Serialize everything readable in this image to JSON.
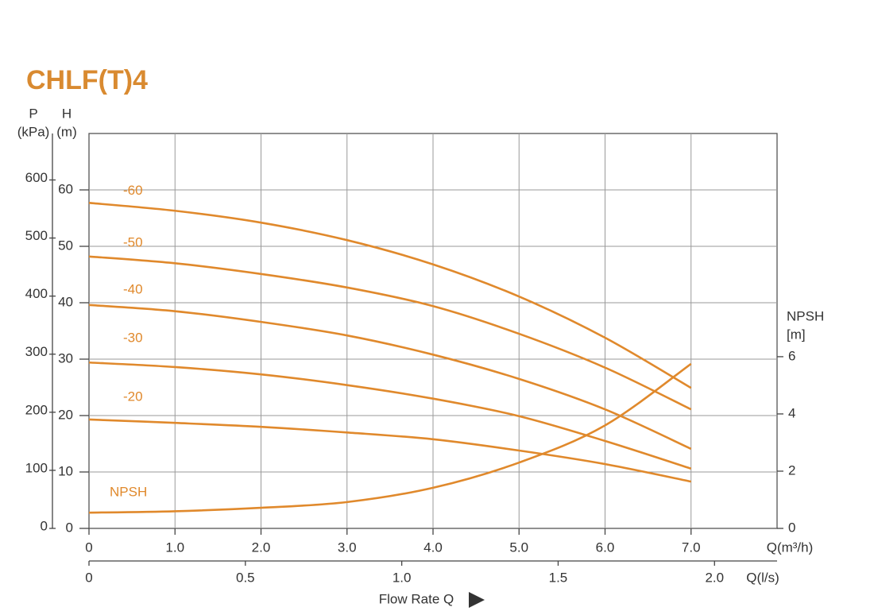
{
  "chart_data": {
    "type": "line",
    "title": "CHLF(T)4",
    "p_label": "P",
    "p_unit": "(kPa)",
    "y_label": "H",
    "y_unit": "(m)",
    "y2_label": "NPSH",
    "y2_unit": "[m]",
    "x_unit": "Q(m³/h)",
    "x2_unit": "Q(l/s)",
    "x_label": "Flow Rate Q",
    "grid": true,
    "xlim": [
      0,
      8
    ],
    "xticks": [
      0,
      {
        "value": 1,
        "label": "1.0"
      },
      {
        "value": 2,
        "label": "2.0"
      },
      {
        "value": 3,
        "label": "3.0"
      },
      {
        "value": 4,
        "label": "4.0"
      },
      {
        "value": 5,
        "label": "5.0"
      },
      {
        "value": 6,
        "label": "6.0"
      },
      {
        "value": 7,
        "label": "7.0"
      }
    ],
    "x2lim": [
      0,
      2.2
    ],
    "x2ticks": [
      0,
      0.5,
      {
        "value": 1,
        "label": "1.0"
      },
      1.5,
      {
        "value": 2,
        "label": "2.0"
      }
    ],
    "ylim": [
      0,
      70
    ],
    "yticks": [
      0,
      10,
      20,
      30,
      40,
      50,
      60
    ],
    "plim": [
      0,
      680
    ],
    "pticks": [
      0,
      100,
      200,
      300,
      400,
      500,
      600
    ],
    "y2lim": [
      0,
      13.8
    ],
    "y2ticks": [
      0,
      2,
      4,
      6
    ],
    "x": [
      0,
      1,
      2,
      3,
      4,
      5,
      6,
      7
    ],
    "series": [
      {
        "name": "-60",
        "color": "#e0892c",
        "values": [
          57.7,
          56.3,
          54.2,
          51.1,
          46.8,
          41.1,
          33.8,
          24.9
        ]
      },
      {
        "name": "-50",
        "color": "#e0892c",
        "values": [
          48.2,
          47.0,
          45.1,
          42.7,
          39.4,
          34.5,
          28.5,
          21.1
        ]
      },
      {
        "name": "-40",
        "color": "#e0892c",
        "values": [
          39.6,
          38.5,
          36.6,
          34.2,
          30.8,
          26.5,
          21.1,
          14.1
        ]
      },
      {
        "name": "-30",
        "color": "#e0892c",
        "values": [
          29.4,
          28.6,
          27.3,
          25.4,
          23.0,
          19.9,
          15.5,
          10.6
        ]
      },
      {
        "name": "-20",
        "color": "#e0892c",
        "values": [
          19.3,
          18.7,
          18.0,
          17.0,
          15.8,
          13.8,
          11.4,
          8.3
        ]
      },
      {
        "name": "NPSH",
        "color": "#e0892c",
        "axis": "y2",
        "values": [
          0.55,
          0.6,
          0.72,
          0.92,
          1.42,
          2.3,
          3.6,
          5.75
        ]
      }
    ]
  }
}
